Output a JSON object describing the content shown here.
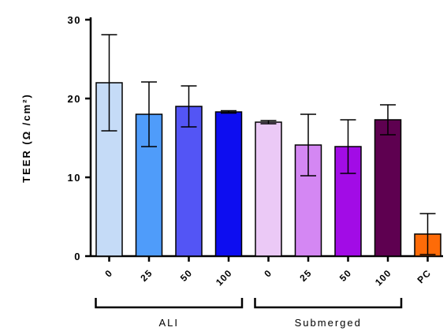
{
  "chart_data": {
    "type": "bar",
    "ylabel": "TEER (Ω /cm²)",
    "ylim": [
      0,
      30
    ],
    "yticks": [
      0,
      10,
      20,
      30
    ],
    "categories": [
      "0",
      "25",
      "50",
      "100",
      "0",
      "25",
      "50",
      "100",
      "PC"
    ],
    "values": [
      22.0,
      18.0,
      19.0,
      18.3,
      17.0,
      14.1,
      13.9,
      17.3,
      2.8
    ],
    "errors": [
      6.1,
      4.1,
      2.6,
      0.15,
      0.2,
      3.9,
      3.4,
      1.9,
      2.6
    ],
    "colors": [
      "#c5dbf7",
      "#4f9cfa",
      "#5355f5",
      "#0d0df0",
      "#ebc9f6",
      "#d487f3",
      "#a20ce6",
      "#5e0050",
      "#fe6b08"
    ],
    "groups": [
      {
        "label": "ALI",
        "from": 0,
        "to": 3
      },
      {
        "label": "Submerged",
        "from": 4,
        "to": 7
      }
    ],
    "grid": false
  }
}
